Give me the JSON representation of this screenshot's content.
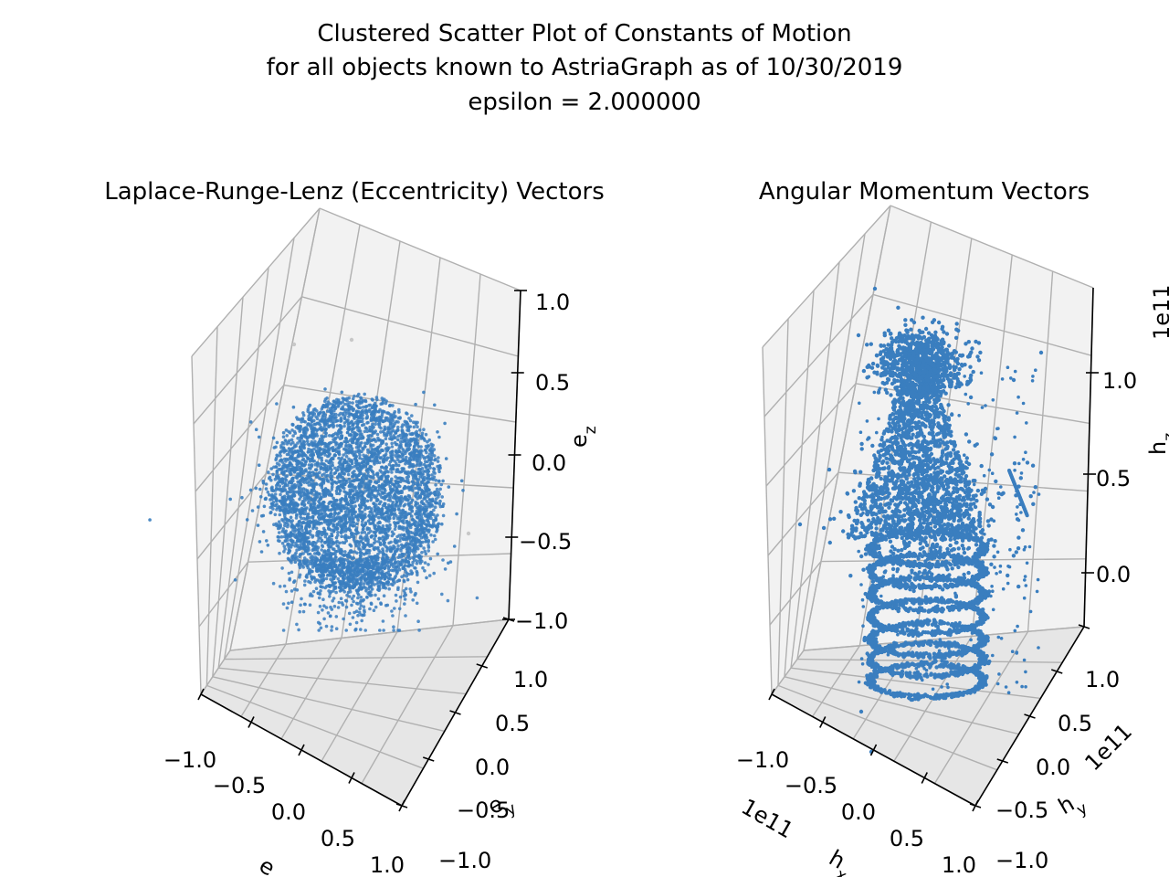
{
  "figure": {
    "title_lines": [
      "Clustered Scatter Plot of Constants of Motion",
      "for all objects known to AstriaGraph as of 10/30/2019",
      "epsilon = 2.000000"
    ]
  },
  "colors": {
    "point": "#3a7ebf",
    "pane_light": "#f2f2f2",
    "pane_dark": "#e6e6e6",
    "grid": "#b0b0b0",
    "noise": "#c8c8c8"
  },
  "chart_data": [
    {
      "type": "scatter",
      "projection": "3d",
      "title": "Laplace-Runge-Lenz (Eccentricity) Vectors",
      "xlabel": "e_x",
      "ylabel": "e_y",
      "zlabel": "e_z",
      "x_ticks": [
        "−1.0",
        "−0.5",
        "0.0",
        "0.5",
        "1.0"
      ],
      "y_ticks": [
        "−1.0",
        "−0.5",
        "0.0",
        "0.5",
        "1.0"
      ],
      "z_ticks": [
        "−1.0",
        "−0.5",
        "0.0",
        "0.5",
        "1.0"
      ],
      "xlim": [
        -1.0,
        1.0
      ],
      "ylim": [
        -1.0,
        1.0
      ],
      "zlim": [
        -1.0,
        1.0
      ],
      "grid": true,
      "clusters": [
        {
          "label": "cluster",
          "center": [
            0.0,
            0.0,
            -0.1
          ],
          "shape": "spherical shell",
          "radius": 0.45,
          "count": "dense"
        },
        {
          "label": "noise",
          "points": [
            [
              -0.7,
              0.3,
              0.7
            ],
            [
              -0.3,
              0.4,
              0.75
            ],
            [
              0.6,
              -0.2,
              -0.4
            ]
          ]
        }
      ]
    },
    {
      "type": "scatter",
      "projection": "3d",
      "title": "Angular Momentum Vectors",
      "xlabel": "h_x",
      "ylabel": "h_y",
      "zlabel": "h_z",
      "x_offset_label": "1e11",
      "y_offset_label": "1e11",
      "z_offset_label": "1e11",
      "x_ticks": [
        "−1.0",
        "−0.5",
        "0.0",
        "0.5",
        "1.0"
      ],
      "y_ticks": [
        "−1.0",
        "−0.5",
        "0.0",
        "0.5",
        "1.0"
      ],
      "z_ticks": [
        "0.0",
        "0.5",
        "1.0"
      ],
      "xlim": [
        -1.0,
        1.0
      ],
      "ylim": [
        -1.0,
        1.0
      ],
      "zlim": [
        -0.25,
        1.35
      ],
      "grid": true,
      "clusters": [
        {
          "label": "top cap",
          "center": [
            0.0,
            0.0,
            1.1
          ],
          "radius": 0.15
        },
        {
          "label": "stacked rings",
          "z_range": [
            -0.1,
            0.35
          ],
          "radius": 0.45
        },
        {
          "label": "central column",
          "z_range": [
            0.3,
            1.0
          ]
        }
      ]
    }
  ]
}
